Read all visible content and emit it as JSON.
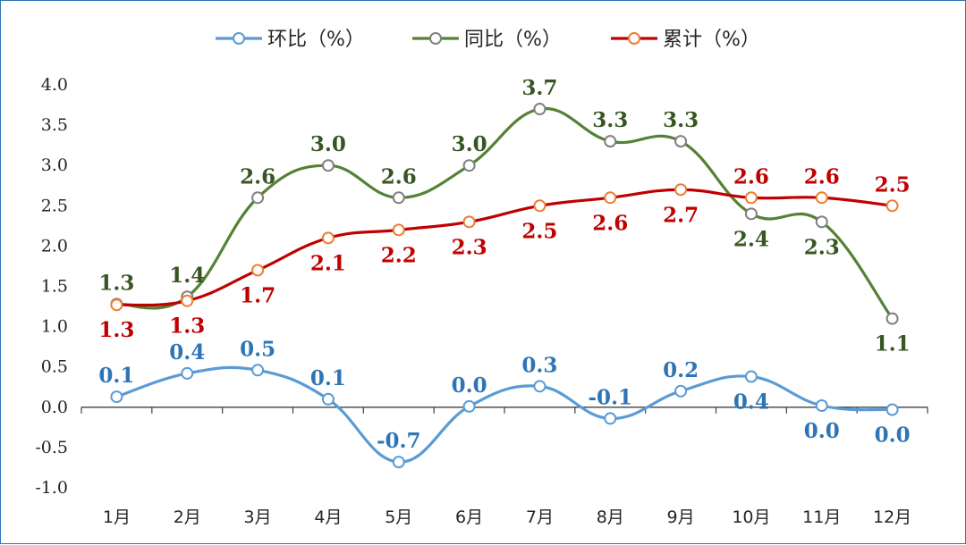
{
  "chart_data": {
    "type": "line",
    "categories": [
      "1月",
      "2月",
      "3月",
      "4月",
      "5月",
      "6月",
      "7月",
      "8月",
      "9月",
      "10月",
      "11月",
      "12月"
    ],
    "ylim": [
      -1.0,
      4.0
    ],
    "yticks": [
      "4.0",
      "3.5",
      "3.0",
      "2.5",
      "2.0",
      "1.5",
      "1.0",
      "0.5",
      "0.0",
      "-0.5",
      "-1.0"
    ],
    "grid": false,
    "legend_position": "top-center",
    "series": [
      {
        "name": "环比（%）",
        "color": "#5b9bd5",
        "label_color": "#2e75b6",
        "values": [
          0.13,
          0.42,
          0.46,
          0.1,
          -0.68,
          0.01,
          0.26,
          -0.14,
          0.2,
          0.38,
          0.02,
          -0.03
        ],
        "labels": [
          "0.1",
          "0.4",
          "0.5",
          "0.1",
          "-0.7",
          "0.0",
          "0.3",
          "-0.1",
          "0.2",
          "0.4",
          "0.0",
          "0.0"
        ],
        "label_pos": [
          "above",
          "above",
          "above",
          "above",
          "above",
          "above",
          "above",
          "above",
          "above",
          "below",
          "below",
          "below"
        ]
      },
      {
        "name": "同比（%）",
        "color": "#548235",
        "label_color": "#375623",
        "values": [
          1.28,
          1.37,
          2.6,
          3.0,
          2.6,
          3.0,
          3.7,
          3.3,
          3.3,
          2.4,
          2.3,
          1.1
        ],
        "labels": [
          "1.3",
          "1.4",
          "2.6",
          "3.0",
          "2.6",
          "3.0",
          "3.7",
          "3.3",
          "3.3",
          "2.4",
          "2.3",
          "1.1"
        ],
        "label_pos": [
          "above",
          "above",
          "above",
          "above",
          "above",
          "above",
          "above",
          "above",
          "above",
          "below",
          "below",
          "below"
        ]
      },
      {
        "name": "累计（%）",
        "color": "#c00000",
        "marker_color": "#ed7d31",
        "label_color": "#c00000",
        "values": [
          1.27,
          1.32,
          1.7,
          2.1,
          2.2,
          2.3,
          2.5,
          2.6,
          2.7,
          2.6,
          2.6,
          2.5
        ],
        "labels": [
          "1.3",
          "1.3",
          "1.7",
          "2.1",
          "2.2",
          "2.3",
          "2.5",
          "2.6",
          "2.7",
          "2.6",
          "2.6",
          "2.5"
        ],
        "label_pos": [
          "below",
          "below",
          "below",
          "below",
          "below",
          "below",
          "below",
          "below",
          "below",
          "above",
          "above",
          "above"
        ]
      }
    ]
  }
}
